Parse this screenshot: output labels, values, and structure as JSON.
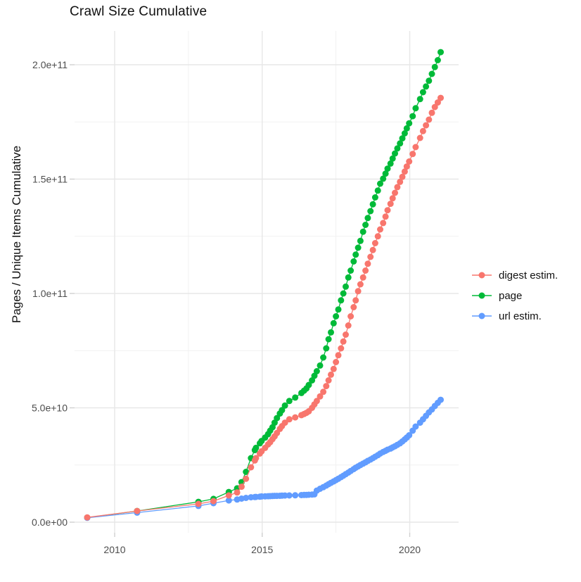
{
  "title": "Crawl Size Cumulative",
  "legend": {
    "entries": [
      {
        "label": "digest estim.",
        "color": "#F8766D"
      },
      {
        "label": "page",
        "color": "#00BA38"
      },
      {
        "label": "url estim.",
        "color": "#619CFF"
      }
    ]
  },
  "chart_data": {
    "type": "line",
    "title": "Crawl Size Cumulative",
    "xlabel": "",
    "ylabel": "Pages / Unique Items Cumulative",
    "grid": true,
    "legend_position": "right",
    "x_unit": "calendar year (decimal)",
    "values_unit": "1e9 items (billions); 205.5 means 2.055e+11",
    "xlim": [
      2008.7,
      2021.7
    ],
    "ylim_e9": [
      -4,
      215
    ],
    "x_ticks": [
      {
        "value": 2010,
        "label": "2010"
      },
      {
        "value": 2015,
        "label": "2015"
      },
      {
        "value": 2020,
        "label": "2020"
      }
    ],
    "x_minor_ticks": [
      2012.5,
      2017.5
    ],
    "y_ticks": [
      {
        "value_e9": 0,
        "label": "0.0e+00"
      },
      {
        "value_e9": 50,
        "label": "5.0e+10"
      },
      {
        "value_e9": 100,
        "label": "1.0e+11"
      },
      {
        "value_e9": 150,
        "label": "1.5e+11"
      },
      {
        "value_e9": 200,
        "label": "2.0e+11"
      }
    ],
    "y_minor_ticks_e9": [
      25,
      75,
      125,
      175
    ],
    "x": [
      2009.07,
      2010.76,
      2012.84,
      2013.35,
      2013.87,
      2014.15,
      2014.3,
      2014.45,
      2014.62,
      2014.75,
      2014.79,
      2014.92,
      2014.98,
      2015.1,
      2015.2,
      2015.27,
      2015.35,
      2015.42,
      2015.5,
      2015.6,
      2015.67,
      2015.77,
      2015.92,
      2016.12,
      2016.33,
      2016.42,
      2016.5,
      2016.58,
      2016.69,
      2016.77,
      2016.85,
      2016.96,
      2017.07,
      2017.17,
      2017.25,
      2017.33,
      2017.42,
      2017.5,
      2017.58,
      2017.67,
      2017.75,
      2017.83,
      2017.92,
      2018.0,
      2018.1,
      2018.17,
      2018.25,
      2018.33,
      2018.42,
      2018.5,
      2018.58,
      2018.67,
      2018.75,
      2018.83,
      2018.92,
      2019.0,
      2019.1,
      2019.18,
      2019.25,
      2019.35,
      2019.42,
      2019.5,
      2019.58,
      2019.67,
      2019.75,
      2019.83,
      2019.9,
      2019.98,
      2020.1,
      2020.2,
      2020.35,
      2020.45,
      2020.55,
      2020.65,
      2020.75,
      2020.85,
      2020.95,
      2021.05
    ],
    "series": [
      {
        "name": "digest estim.",
        "color": "#F8766D",
        "values": [
          2.1,
          4.9,
          8.0,
          9.2,
          11.7,
          13.0,
          15.5,
          19.0,
          24.0,
          27.0,
          28.0,
          30.0,
          31.0,
          32.5,
          34.0,
          35.0,
          36.3,
          37.5,
          39.0,
          40.8,
          42.0,
          43.5,
          45.0,
          45.8,
          46.8,
          47.3,
          47.8,
          48.5,
          50.0,
          51.5,
          53.0,
          55.0,
          57.0,
          59.5,
          62.0,
          64.5,
          67.0,
          70.0,
          73.0,
          76.0,
          79.0,
          82.0,
          86.0,
          90.0,
          94.0,
          97.0,
          101.0,
          104.0,
          107.0,
          110.0,
          113.0,
          116.0,
          119.0,
          122.0,
          125.0,
          128.0,
          130.8,
          133.6,
          136.4,
          139.2,
          141.6,
          144.0,
          146.5,
          148.8,
          151.0,
          153.3,
          155.5,
          157.7,
          161.0,
          164.0,
          168.0,
          171.0,
          173.5,
          176.0,
          179.0,
          181.5,
          183.5,
          185.5
        ]
      },
      {
        "name": "page",
        "color": "#00BA38",
        "values": [
          2.0,
          4.9,
          8.9,
          10.2,
          13.2,
          14.8,
          17.5,
          22.0,
          28.0,
          31.5,
          32.5,
          34.5,
          35.5,
          37.0,
          38.5,
          40.0,
          41.5,
          43.5,
          45.5,
          47.5,
          49.0,
          51.0,
          53.0,
          54.5,
          56.5,
          57.5,
          58.5,
          60.0,
          62.0,
          64.0,
          66.0,
          68.5,
          72.0,
          76.0,
          80.0,
          83.0,
          87.0,
          90.0,
          93.0,
          97.0,
          100.0,
          103.0,
          107.0,
          110.0,
          114.0,
          117.0,
          120.0,
          123.0,
          127.0,
          130.0,
          133.0,
          136.0,
          139.0,
          142.0,
          145.0,
          148.0,
          150.2,
          152.4,
          154.6,
          156.8,
          159.0,
          161.2,
          163.4,
          165.6,
          167.8,
          170.0,
          172.2,
          174.4,
          177.5,
          181.0,
          185.0,
          188.0,
          190.5,
          193.0,
          196.0,
          199.0,
          202.0,
          205.5
        ]
      },
      {
        "name": "url estim.",
        "color": "#619CFF",
        "values": [
          1.9,
          4.2,
          7.1,
          8.3,
          9.5,
          9.9,
          10.3,
          10.6,
          10.9,
          11.0,
          11.05,
          11.15,
          11.25,
          11.3,
          11.35,
          11.4,
          11.45,
          11.5,
          11.5,
          11.55,
          11.6,
          11.65,
          11.7,
          11.75,
          11.85,
          11.9,
          11.95,
          12.0,
          12.1,
          12.2,
          13.8,
          14.6,
          15.3,
          16.0,
          16.6,
          17.2,
          17.8,
          18.4,
          19.0,
          19.7,
          20.3,
          21.0,
          21.7,
          22.4,
          23.2,
          23.8,
          24.4,
          25.0,
          25.6,
          26.2,
          26.8,
          27.4,
          28.0,
          28.6,
          29.3,
          30.0,
          30.7,
          31.2,
          31.7,
          32.2,
          32.7,
          33.2,
          33.8,
          34.5,
          35.3,
          36.2,
          37.0,
          38.0,
          40.0,
          41.8,
          43.5,
          45.0,
          46.5,
          48.0,
          49.3,
          50.8,
          52.2,
          53.5
        ]
      }
    ],
    "draw_order": [
      "page",
      "url estim.",
      "digest estim."
    ]
  }
}
